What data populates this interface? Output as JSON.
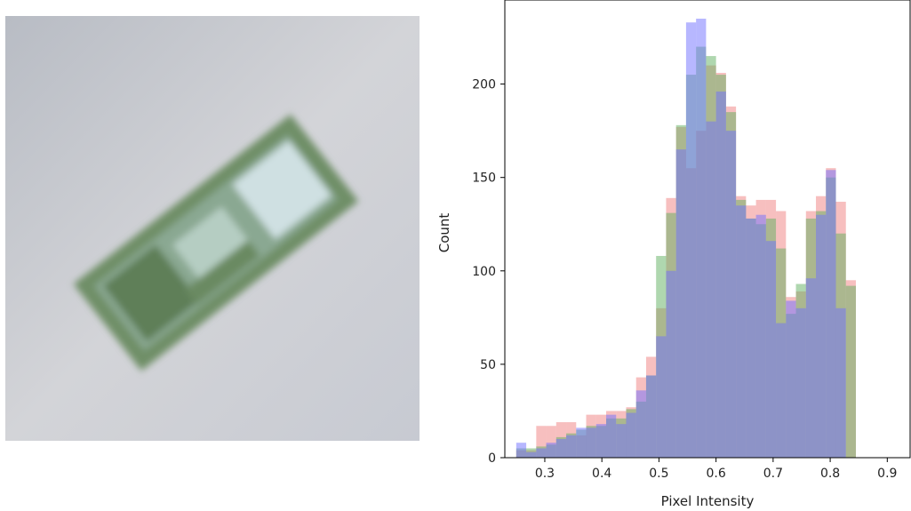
{
  "image_panel": {
    "description": "blurred pixelated photo of a green banknote on a light grey background",
    "colors": {
      "background": "#c4c6cc",
      "note_dark": "#5a7a52",
      "note_light": "#a9c3b0"
    }
  },
  "chart_data": {
    "type": "histogram",
    "xlabel": "Pixel Intensity",
    "ylabel": "Count",
    "xlim": [
      0.23,
      0.94
    ],
    "ylim": [
      0,
      245
    ],
    "xticks": [
      0.3,
      0.4,
      0.5,
      0.6,
      0.7,
      0.8,
      0.9
    ],
    "yticks": [
      0,
      50,
      100,
      150,
      200
    ],
    "bin_width": 0.0175,
    "bins_start": 0.25,
    "series": [
      {
        "color": "#f08080",
        "values": [
          4,
          4,
          17,
          17,
          19,
          19,
          12,
          23,
          23,
          25,
          25,
          27,
          43,
          54,
          80,
          139,
          177,
          155,
          175,
          210,
          206,
          188,
          140,
          135,
          138,
          138,
          132,
          86,
          89,
          132,
          140,
          155,
          137,
          95,
          0
        ]
      },
      {
        "color": "#60b060",
        "values": [
          5,
          5,
          6,
          7,
          11,
          13,
          15,
          17,
          17,
          21,
          21,
          26,
          30,
          44,
          108,
          131,
          178,
          205,
          220,
          215,
          205,
          185,
          138,
          128,
          125,
          128,
          112,
          77,
          93,
          128,
          132,
          150,
          120,
          92,
          0
        ]
      },
      {
        "color": "#7070ff",
        "values": [
          8,
          3,
          5,
          8,
          10,
          12,
          16,
          16,
          18,
          23,
          18,
          24,
          36,
          44,
          65,
          100,
          165,
          233,
          235,
          180,
          196,
          175,
          135,
          128,
          130,
          116,
          72,
          84,
          80,
          96,
          130,
          154,
          80,
          0,
          0
        ]
      }
    ]
  }
}
